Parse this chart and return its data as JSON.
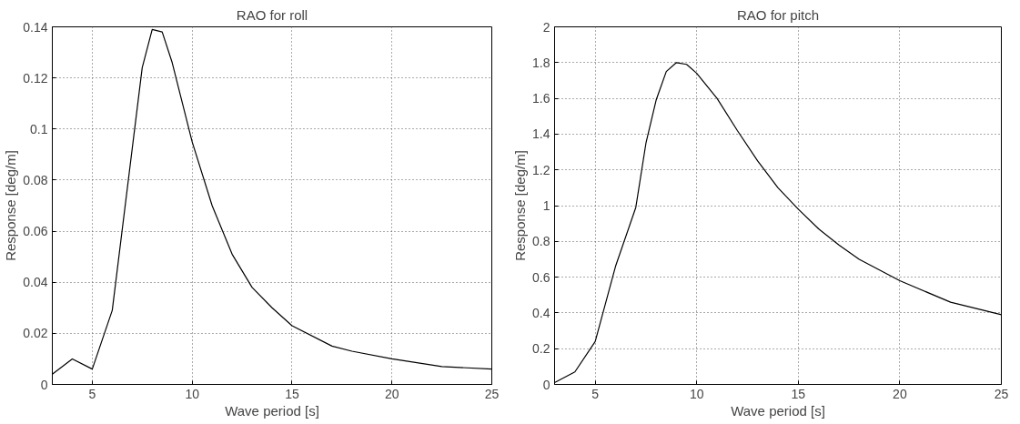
{
  "chart_data": [
    {
      "type": "line",
      "title": "RAO for roll",
      "xlabel": "Wave period [s]",
      "ylabel": "Response [deg/m]",
      "x": [
        3,
        4,
        5,
        6,
        7.5,
        8,
        8.5,
        9,
        10,
        11,
        12,
        13,
        14,
        15,
        17,
        18,
        20,
        22.5,
        25
      ],
      "series": [
        {
          "color": "#000000",
          "values": [
            0.004,
            0.01,
            0.006,
            0.029,
            0.124,
            0.139,
            0.138,
            0.126,
            0.095,
            0.07,
            0.051,
            0.038,
            0.03,
            0.023,
            0.015,
            0.013,
            0.01,
            0.007,
            0.006
          ]
        }
      ],
      "xlim": [
        3,
        25
      ],
      "xticks": [
        5,
        10,
        15,
        20,
        25
      ],
      "ylim": [
        0,
        0.14
      ],
      "yticks": [
        0,
        0.02,
        0.04,
        0.06,
        0.08,
        0.1,
        0.12,
        0.14
      ],
      "grid": true,
      "line_style": "solid"
    },
    {
      "type": "line",
      "title": "RAO for pitch",
      "xlabel": "Wave period [s]",
      "ylabel": "Response [deg/m]",
      "x": [
        3,
        4,
        5,
        6,
        7,
        7.5,
        8,
        8.5,
        9,
        9.5,
        10,
        11,
        12,
        13,
        14,
        15,
        16,
        17,
        18,
        20,
        22.5,
        25
      ],
      "series": [
        {
          "color": "#000000",
          "values": [
            0.01,
            0.07,
            0.24,
            0.66,
            0.99,
            1.35,
            1.59,
            1.75,
            1.8,
            1.79,
            1.74,
            1.6,
            1.42,
            1.25,
            1.1,
            0.98,
            0.87,
            0.78,
            0.7,
            0.58,
            0.46,
            0.39
          ]
        }
      ],
      "xlim": [
        3,
        25
      ],
      "xticks": [
        5,
        10,
        15,
        20,
        25
      ],
      "ylim": [
        0,
        2
      ],
      "yticks": [
        0,
        0.2,
        0.4,
        0.6,
        0.8,
        1,
        1.2,
        1.4,
        1.6,
        1.8,
        2
      ],
      "grid": true,
      "line_style": "solid"
    }
  ]
}
